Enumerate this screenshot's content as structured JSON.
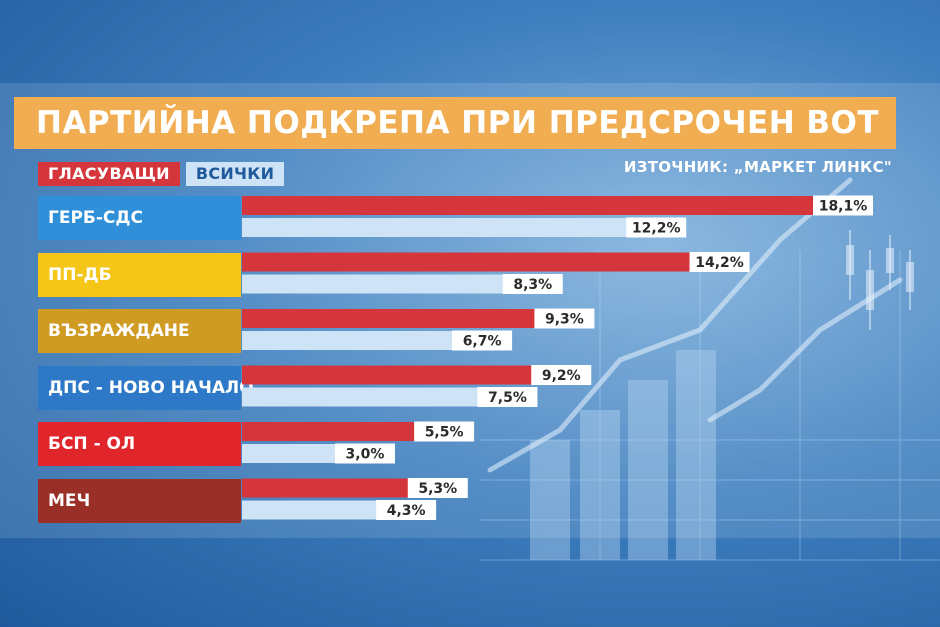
{
  "title": "ПАРТИЙНА ПОДКРЕПА ПРИ ПРЕДСРОЧЕН ВОТ",
  "legend": {
    "voters": "ГЛАСУВАЩИ",
    "all": "ВСИЧКИ"
  },
  "source": "ИЗТОЧНИК: „МАРКЕТ ЛИНКС\"",
  "colors": {
    "title_bar": "#f0ad52",
    "voters_bar": "#d5363b",
    "all_bar": "#cfe3f6"
  },
  "chart_data": {
    "type": "bar",
    "orientation": "horizontal",
    "title": "ПАРТИЙНА ПОДКРЕПА ПРИ ПРЕДСРОЧЕН ВОТ",
    "categories": [
      "ГЕРБ-СДС",
      "ПП-ДБ",
      "ВЪЗРАЖДАНЕ",
      "ДПС - НОВО НАЧАЛО",
      "БСП - ОЛ",
      "МЕЧ"
    ],
    "category_colors": [
      "#2f8fd8",
      "#f5c518",
      "#cf9b22",
      "#2d79c7",
      "#e0262b",
      "#9a2f27"
    ],
    "series": [
      {
        "name": "ГЛАСУВАЩИ",
        "color": "#d5363b",
        "values": [
          18.1,
          14.2,
          9.3,
          9.2,
          5.5,
          5.3
        ],
        "labels": [
          "18,1%",
          "14,2%",
          "9,3%",
          "9,2%",
          "5,5%",
          "5,3%"
        ]
      },
      {
        "name": "ВСИЧКИ",
        "color": "#cfe3f6",
        "values": [
          12.2,
          8.3,
          6.7,
          7.5,
          3.0,
          4.3
        ],
        "labels": [
          "12,2%",
          "8,3%",
          "6,7%",
          "7,5%",
          "3,0%",
          "4,3%"
        ]
      }
    ],
    "xlim": [
      0,
      18.1
    ],
    "legend_position": "top-left",
    "grid": false
  }
}
